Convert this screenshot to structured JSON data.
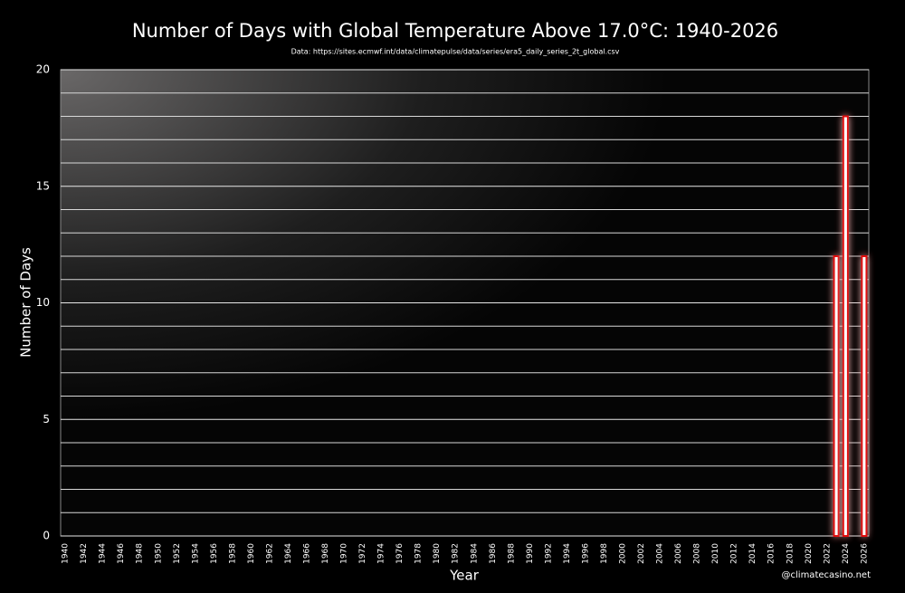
{
  "chart_data": {
    "type": "bar",
    "title": "Number of Days with Global Temperature Above 17.0°C: 1940-2026",
    "subtitle": "Data: https://sites.ecmwf.int/data/climatepulse/data/series/era5_daily_series_2t_global.csv",
    "xlabel": "Year",
    "ylabel": "Number of Days",
    "watermark": "@climatecasino.net",
    "x": [
      1940,
      1941,
      1942,
      1943,
      1944,
      1945,
      1946,
      1947,
      1948,
      1949,
      1950,
      1951,
      1952,
      1953,
      1954,
      1955,
      1956,
      1957,
      1958,
      1959,
      1960,
      1961,
      1962,
      1963,
      1964,
      1965,
      1966,
      1967,
      1968,
      1969,
      1970,
      1971,
      1972,
      1973,
      1974,
      1975,
      1976,
      1977,
      1978,
      1979,
      1980,
      1981,
      1982,
      1983,
      1984,
      1985,
      1986,
      1987,
      1988,
      1989,
      1990,
      1991,
      1992,
      1993,
      1994,
      1995,
      1996,
      1997,
      1998,
      1999,
      2000,
      2001,
      2002,
      2003,
      2004,
      2005,
      2006,
      2007,
      2008,
      2009,
      2010,
      2011,
      2012,
      2013,
      2014,
      2015,
      2016,
      2017,
      2018,
      2019,
      2020,
      2021,
      2022,
      2023,
      2024,
      2025,
      2026
    ],
    "values": [
      0,
      0,
      0,
      0,
      0,
      0,
      0,
      0,
      0,
      0,
      0,
      0,
      0,
      0,
      0,
      0,
      0,
      0,
      0,
      0,
      0,
      0,
      0,
      0,
      0,
      0,
      0,
      0,
      0,
      0,
      0,
      0,
      0,
      0,
      0,
      0,
      0,
      0,
      0,
      0,
      0,
      0,
      0,
      0,
      0,
      0,
      0,
      0,
      0,
      0,
      0,
      0,
      0,
      0,
      0,
      0,
      0,
      0,
      0,
      0,
      0,
      0,
      0,
      0,
      0,
      0,
      0,
      0,
      0,
      0,
      0,
      0,
      0,
      0,
      0,
      0,
      0,
      0,
      0,
      0,
      0,
      0,
      0,
      12,
      18,
      0,
      12
    ],
    "color": "#e01010",
    "xlim": [
      1939.5,
      2026.5
    ],
    "xticks": [
      1940,
      1942,
      1944,
      1946,
      1948,
      1950,
      1952,
      1954,
      1956,
      1958,
      1960,
      1962,
      1964,
      1966,
      1968,
      1970,
      1972,
      1974,
      1976,
      1978,
      1980,
      1982,
      1984,
      1986,
      1988,
      1990,
      1992,
      1994,
      1996,
      1998,
      2000,
      2002,
      2004,
      2006,
      2008,
      2010,
      2012,
      2014,
      2016,
      2018,
      2020,
      2022,
      2024,
      2026
    ],
    "ylim": [
      0,
      20
    ],
    "yticks": [
      0,
      5,
      10,
      15,
      20
    ],
    "minor_yticks": [
      1,
      2,
      3,
      4,
      6,
      7,
      8,
      9,
      11,
      12,
      13,
      14,
      16,
      17,
      18,
      19
    ],
    "grid": true
  }
}
